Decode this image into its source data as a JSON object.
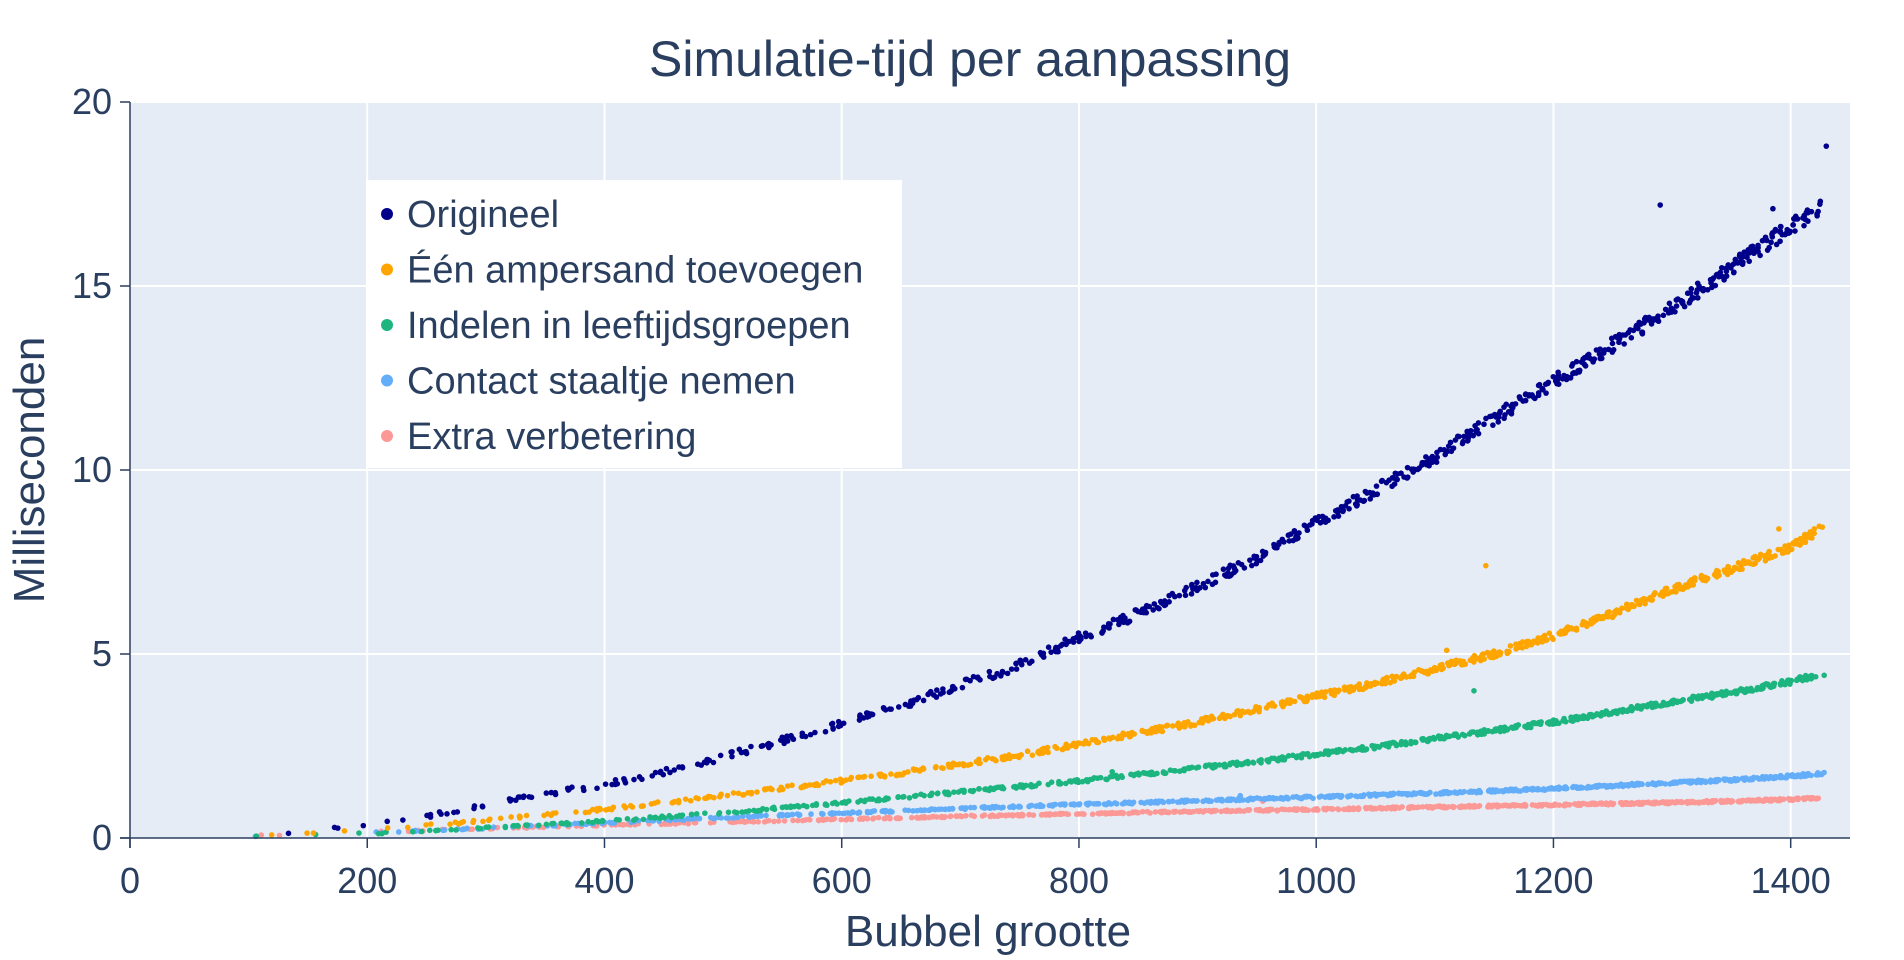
{
  "chart_data": {
    "type": "scatter",
    "title": "Simulatie-tijd per aanpassing",
    "xlabel": "Bubbel grootte",
    "ylabel": "Milliseconden",
    "xlim": [
      0,
      1450
    ],
    "ylim": [
      0,
      20
    ],
    "xticks": [
      0,
      200,
      400,
      600,
      800,
      1000,
      1200,
      1400
    ],
    "xtick_labels": [
      "0",
      "200",
      "400",
      "600",
      "800",
      "1000",
      "1200",
      "1400"
    ],
    "yticks": [
      0,
      5,
      10,
      15,
      20
    ],
    "ytick_labels": [
      "0",
      "5",
      "10",
      "15",
      "20"
    ],
    "grid": true,
    "background": "#e5ecf6",
    "legend_position": "top-left",
    "series": [
      {
        "name": "Origineel",
        "color": "#00008b",
        "x": [
          50,
          100,
          150,
          200,
          250,
          300,
          350,
          400,
          450,
          500,
          550,
          600,
          650,
          700,
          750,
          800,
          850,
          900,
          950,
          1000,
          1050,
          1100,
          1150,
          1200,
          1250,
          1300,
          1350,
          1400,
          1430
        ],
        "y": [
          0.03,
          0.07,
          0.18,
          0.36,
          0.59,
          0.9,
          1.2,
          1.45,
          1.8,
          2.2,
          2.65,
          3.1,
          3.6,
          4.15,
          4.7,
          5.45,
          6.1,
          6.85,
          7.6,
          8.55,
          9.45,
          10.35,
          11.4,
          12.4,
          13.4,
          14.4,
          15.5,
          16.6,
          17.2
        ],
        "outliers": [
          [
            290,
            0.8
          ],
          [
            1290,
            17.2
          ],
          [
            1385,
            17.1
          ],
          [
            1425,
            17.3
          ],
          [
            1430,
            18.8
          ]
        ]
      },
      {
        "name": "Één ampersand toevoegen",
        "color": "#fea500",
        "x": [
          50,
          100,
          150,
          200,
          250,
          300,
          350,
          400,
          450,
          500,
          550,
          600,
          650,
          700,
          750,
          800,
          850,
          900,
          950,
          1000,
          1050,
          1100,
          1150,
          1200,
          1250,
          1300,
          1350,
          1400,
          1430
        ],
        "y": [
          0.02,
          0.05,
          0.12,
          0.22,
          0.34,
          0.48,
          0.62,
          0.78,
          0.96,
          1.15,
          1.35,
          1.55,
          1.77,
          2.0,
          2.25,
          2.55,
          2.85,
          3.15,
          3.5,
          3.85,
          4.2,
          4.6,
          5.0,
          5.5,
          6.1,
          6.75,
          7.3,
          7.9,
          8.5
        ],
        "outliers": [
          [
            1143,
            7.4
          ],
          [
            1110,
            5.1
          ],
          [
            1390,
            8.4
          ]
        ]
      },
      {
        "name": "Indelen in leeftijdsgroepen",
        "color": "#1db57f",
        "x": [
          50,
          100,
          150,
          200,
          250,
          300,
          350,
          400,
          450,
          500,
          550,
          600,
          650,
          700,
          750,
          800,
          850,
          900,
          950,
          1000,
          1050,
          1100,
          1150,
          1200,
          1250,
          1300,
          1350,
          1400,
          1430
        ],
        "y": [
          0.01,
          0.03,
          0.07,
          0.12,
          0.19,
          0.27,
          0.36,
          0.46,
          0.57,
          0.69,
          0.82,
          0.95,
          1.1,
          1.25,
          1.4,
          1.55,
          1.72,
          1.9,
          2.08,
          2.28,
          2.48,
          2.7,
          2.92,
          3.15,
          3.42,
          3.7,
          3.95,
          4.25,
          4.5
        ],
        "outliers": [
          [
            828,
            1.8
          ],
          [
            1133,
            4.0
          ],
          [
            587,
            0.9
          ]
        ]
      },
      {
        "name": "Contact staaltje nemen",
        "color": "#63adf9",
        "x": [
          50,
          100,
          150,
          200,
          250,
          300,
          350,
          400,
          450,
          500,
          550,
          600,
          650,
          700,
          750,
          800,
          850,
          900,
          950,
          1000,
          1050,
          1100,
          1150,
          1200,
          1250,
          1300,
          1350,
          1400,
          1430
        ],
        "y": [
          0.02,
          0.05,
          0.09,
          0.14,
          0.2,
          0.27,
          0.34,
          0.41,
          0.48,
          0.55,
          0.62,
          0.68,
          0.74,
          0.8,
          0.86,
          0.91,
          0.96,
          1.01,
          1.06,
          1.11,
          1.17,
          1.22,
          1.28,
          1.34,
          1.42,
          1.5,
          1.58,
          1.68,
          1.76
        ],
        "outliers": [
          [
            936,
            1.15
          ]
        ]
      },
      {
        "name": "Extra verbetering",
        "color": "#fc9895",
        "x": [
          50,
          100,
          150,
          200,
          250,
          300,
          350,
          400,
          450,
          500,
          550,
          600,
          650,
          700,
          750,
          800,
          850,
          900,
          950,
          1000,
          1050,
          1100,
          1150,
          1200,
          1250,
          1300,
          1350,
          1400,
          1430
        ],
        "y": [
          0.02,
          0.06,
          0.11,
          0.16,
          0.21,
          0.26,
          0.3,
          0.35,
          0.39,
          0.43,
          0.47,
          0.51,
          0.55,
          0.59,
          0.62,
          0.66,
          0.69,
          0.72,
          0.75,
          0.78,
          0.81,
          0.84,
          0.87,
          0.9,
          0.93,
          0.96,
          1.0,
          1.05,
          1.1
        ],
        "outliers": [
          [
            955,
            1.0
          ]
        ]
      }
    ]
  }
}
